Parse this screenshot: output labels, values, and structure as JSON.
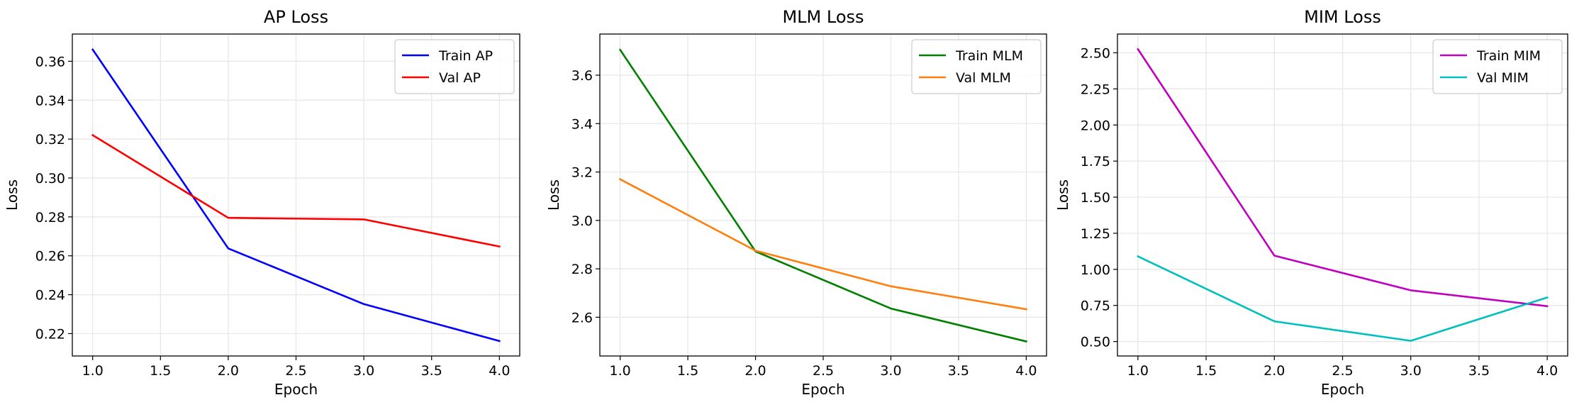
{
  "chart_data": [
    {
      "type": "line",
      "title": "AP Loss",
      "xlabel": "Epoch",
      "ylabel": "Loss",
      "xlim": [
        0.85,
        4.15
      ],
      "ylim": [
        0.2085,
        0.374
      ],
      "xticks": [
        1.0,
        1.5,
        2.0,
        2.5,
        3.0,
        3.5,
        4.0
      ],
      "xtick_labels": [
        "1.0",
        "1.5",
        "2.0",
        "2.5",
        "3.0",
        "3.5",
        "4.0"
      ],
      "yticks": [
        0.22,
        0.24,
        0.26,
        0.28,
        0.3,
        0.32,
        0.34,
        0.36
      ],
      "ytick_labels": [
        "0.22",
        "0.24",
        "0.26",
        "0.28",
        "0.30",
        "0.32",
        "0.34",
        "0.36"
      ],
      "grid": true,
      "legend_position": "top-right",
      "series": [
        {
          "name": "Train AP",
          "color": "#0000ff",
          "x": [
            1,
            2,
            3,
            4
          ],
          "y": [
            0.366,
            0.2638,
            0.2352,
            0.2162
          ]
        },
        {
          "name": "Val AP",
          "color": "#ff0000",
          "x": [
            1,
            2,
            3,
            4
          ],
          "y": [
            0.322,
            0.2795,
            0.2787,
            0.2648
          ]
        }
      ]
    },
    {
      "type": "line",
      "title": "MLM Loss",
      "xlabel": "Epoch",
      "ylabel": "Loss",
      "xlim": [
        0.85,
        4.15
      ],
      "ylim": [
        2.44,
        3.77
      ],
      "xticks": [
        1.0,
        1.5,
        2.0,
        2.5,
        3.0,
        3.5,
        4.0
      ],
      "xtick_labels": [
        "1.0",
        "1.5",
        "2.0",
        "2.5",
        "3.0",
        "3.5",
        "4.0"
      ],
      "yticks": [
        2.6,
        2.8,
        3.0,
        3.2,
        3.4,
        3.6
      ],
      "ytick_labels": [
        "2.6",
        "2.8",
        "3.0",
        "3.2",
        "3.4",
        "3.6"
      ],
      "grid": true,
      "legend_position": "top-right",
      "series": [
        {
          "name": "Train MLM",
          "color": "#008000",
          "x": [
            1,
            2,
            3,
            4
          ],
          "y": [
            3.705,
            2.872,
            2.636,
            2.5
          ]
        },
        {
          "name": "Val MLM",
          "color": "#ff7f0e",
          "x": [
            1,
            2,
            3,
            4
          ],
          "y": [
            3.17,
            2.875,
            2.728,
            2.633
          ]
        }
      ]
    },
    {
      "type": "line",
      "title": "MIM Loss",
      "xlabel": "Epoch",
      "ylabel": "Loss",
      "xlim": [
        0.85,
        4.15
      ],
      "ylim": [
        0.4,
        2.63
      ],
      "xticks": [
        1.0,
        1.5,
        2.0,
        2.5,
        3.0,
        3.5,
        4.0
      ],
      "xtick_labels": [
        "1.0",
        "1.5",
        "2.0",
        "2.5",
        "3.0",
        "3.5",
        "4.0"
      ],
      "yticks": [
        0.5,
        0.75,
        1.0,
        1.25,
        1.5,
        1.75,
        2.0,
        2.25,
        2.5
      ],
      "ytick_labels": [
        "0.50",
        "0.75",
        "1.00",
        "1.25",
        "1.50",
        "1.75",
        "2.00",
        "2.25",
        "2.50"
      ],
      "grid": true,
      "legend_position": "top-right",
      "series": [
        {
          "name": "Train MIM",
          "color": "#bf00bf",
          "x": [
            1,
            2,
            3,
            4
          ],
          "y": [
            2.525,
            1.095,
            0.855,
            0.745
          ]
        },
        {
          "name": "Val MIM",
          "color": "#00bfbf",
          "x": [
            1,
            2,
            3,
            4
          ],
          "y": [
            1.09,
            0.64,
            0.505,
            0.805
          ]
        }
      ]
    }
  ]
}
